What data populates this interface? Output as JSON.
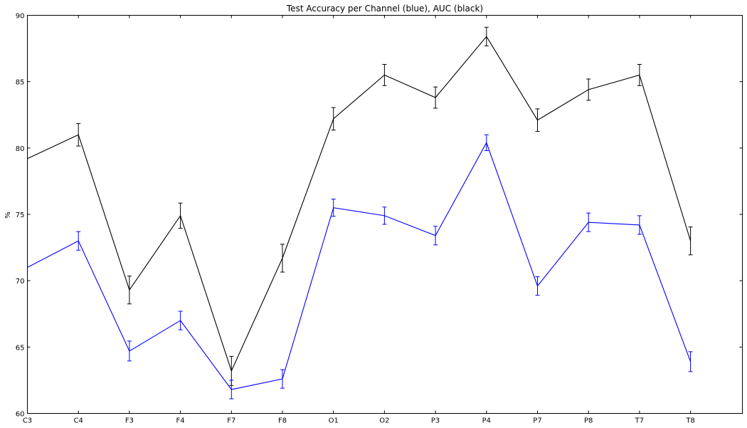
{
  "chart_data": {
    "type": "line",
    "title": "Test Accuracy per Channel (blue), AUC (black)",
    "xlabel": "",
    "ylabel": "%",
    "categories": [
      "C3",
      "C4",
      "F3",
      "F4",
      "F7",
      "F8",
      "O1",
      "O2",
      "P3",
      "P4",
      "P7",
      "P8",
      "T7",
      "T8"
    ],
    "ylim": [
      60,
      90
    ],
    "yticks": [
      60,
      65,
      70,
      75,
      80,
      85,
      90
    ],
    "grid": false,
    "series": [
      {
        "color": "#000000",
        "values": [
          79.2,
          81.0,
          69.3,
          74.9,
          63.2,
          71.7,
          82.2,
          85.5,
          83.8,
          88.4,
          82.1,
          84.4,
          85.5,
          73.0
        ],
        "errors": [
          null,
          0.85,
          1.05,
          0.95,
          1.1,
          1.05,
          0.85,
          0.8,
          0.8,
          0.7,
          0.85,
          0.8,
          0.8,
          1.05
        ]
      },
      {
        "color": "#0000ff",
        "values": [
          71.0,
          73.0,
          64.7,
          67.0,
          61.8,
          62.6,
          75.5,
          74.9,
          73.4,
          80.4,
          69.6,
          74.4,
          74.2,
          63.9
        ],
        "errors": [
          null,
          0.7,
          0.75,
          0.7,
          0.7,
          0.7,
          0.65,
          0.65,
          0.7,
          0.6,
          0.7,
          0.7,
          0.7,
          0.75
        ]
      }
    ]
  }
}
